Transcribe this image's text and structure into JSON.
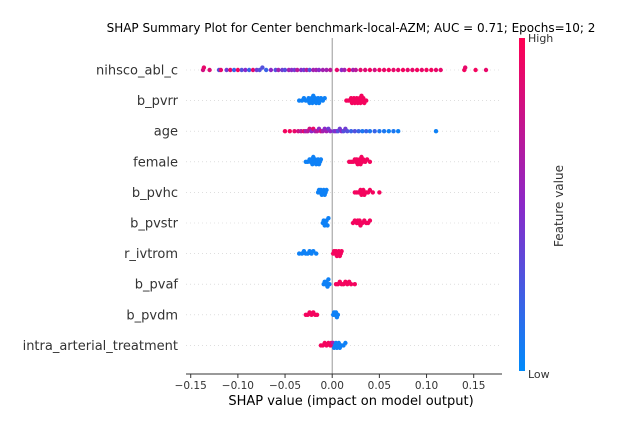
{
  "chart_data": {
    "type": "scatter",
    "subtype": "shap-beeswarm",
    "title": "SHAP Summary Plot for Center benchmark-local-AZM; AUC = 0.71; Epochs=10; 2",
    "xlabel": "SHAP value (impact on model output)",
    "xlim": [
      -0.155,
      0.18
    ],
    "xticks": [
      -0.15,
      -0.1,
      -0.05,
      0.0,
      0.05,
      0.1,
      0.15
    ],
    "xtick_labels": [
      "−0.15",
      "−0.10",
      "−0.05",
      "0.00",
      "0.05",
      "0.10",
      "0.15"
    ],
    "colorbar": {
      "title": "Feature value",
      "high_label": "High",
      "low_label": "Low",
      "high_color": "#ff0052",
      "mid_color": "#8c28c8",
      "low_color": "#008bfb"
    },
    "grid": "horizontal dotted",
    "features": [
      {
        "name": "nihsco_abl_c",
        "points": [
          [
            -0.137,
            0.8
          ],
          [
            -0.136,
            0.9
          ],
          [
            -0.13,
            0.85
          ],
          [
            -0.12,
            0.3
          ],
          [
            -0.118,
            0.9
          ],
          [
            -0.112,
            0.4
          ],
          [
            -0.108,
            0.9
          ],
          [
            -0.104,
            0.2
          ],
          [
            -0.1,
            0.95
          ],
          [
            -0.096,
            0.3
          ],
          [
            -0.092,
            0.5
          ],
          [
            -0.088,
            0.2
          ],
          [
            -0.084,
            0.9
          ],
          [
            -0.08,
            0.4
          ],
          [
            -0.077,
            0.3
          ],
          [
            -0.074,
            0.3
          ],
          [
            -0.07,
            0.2
          ],
          [
            -0.065,
            0.5
          ],
          [
            -0.06,
            0.3
          ],
          [
            -0.057,
            0.6
          ],
          [
            -0.053,
            0.4
          ],
          [
            -0.05,
            0.3
          ],
          [
            -0.046,
            0.6
          ],
          [
            -0.043,
            0.5
          ],
          [
            -0.04,
            0.4
          ],
          [
            -0.037,
            0.7
          ],
          [
            -0.033,
            0.5
          ],
          [
            -0.03,
            0.4
          ],
          [
            -0.027,
            0.7
          ],
          [
            -0.024,
            0.3
          ],
          [
            -0.02,
            0.6
          ],
          [
            -0.017,
            0.6
          ],
          [
            -0.014,
            0.5
          ],
          [
            -0.01,
            0.6
          ],
          [
            -0.006,
            0.6
          ],
          [
            -0.002,
            0.7
          ],
          [
            0.005,
            0.9
          ],
          [
            0.01,
            0.5
          ],
          [
            0.013,
            0.6
          ],
          [
            0.018,
            0.95
          ],
          [
            0.022,
            0.6
          ],
          [
            0.025,
            0.7
          ],
          [
            0.03,
            0.9
          ],
          [
            0.035,
            0.85
          ],
          [
            0.04,
            0.95
          ],
          [
            0.045,
            0.8
          ],
          [
            0.05,
            0.95
          ],
          [
            0.055,
            0.9
          ],
          [
            0.06,
            0.95
          ],
          [
            0.065,
            0.9
          ],
          [
            0.07,
            0.9
          ],
          [
            0.075,
            0.95
          ],
          [
            0.08,
            0.9
          ],
          [
            0.085,
            0.9
          ],
          [
            0.09,
            0.95
          ],
          [
            0.095,
            0.9
          ],
          [
            0.1,
            0.95
          ],
          [
            0.105,
            0.95
          ],
          [
            0.11,
            0.9
          ],
          [
            0.115,
            0.9
          ],
          [
            0.14,
            0.95
          ],
          [
            0.141,
            0.9
          ],
          [
            0.152,
            0.95
          ],
          [
            0.163,
            0.9
          ]
        ]
      },
      {
        "name": "b_pvrr",
        "points": [
          [
            -0.035,
            0.05
          ],
          [
            -0.032,
            0.05
          ],
          [
            -0.03,
            0.05
          ],
          [
            -0.028,
            0.05
          ],
          [
            -0.026,
            0.05
          ],
          [
            -0.025,
            0.05
          ],
          [
            -0.024,
            0.05
          ],
          [
            -0.023,
            0.05
          ],
          [
            -0.022,
            0.05
          ],
          [
            -0.021,
            0.05
          ],
          [
            -0.02,
            0.05
          ],
          [
            -0.019,
            0.05
          ],
          [
            -0.018,
            0.05
          ],
          [
            -0.017,
            0.05
          ],
          [
            -0.016,
            0.05
          ],
          [
            -0.015,
            0.05
          ],
          [
            -0.014,
            0.05
          ],
          [
            -0.013,
            0.05
          ],
          [
            -0.012,
            0.05
          ],
          [
            -0.01,
            0.05
          ],
          [
            -0.008,
            0.05
          ],
          [
            0.015,
            0.95
          ],
          [
            0.017,
            0.95
          ],
          [
            0.019,
            0.95
          ],
          [
            0.02,
            0.95
          ],
          [
            0.021,
            0.95
          ],
          [
            0.022,
            0.95
          ],
          [
            0.023,
            0.95
          ],
          [
            0.024,
            0.95
          ],
          [
            0.025,
            0.95
          ],
          [
            0.026,
            0.95
          ],
          [
            0.027,
            0.95
          ],
          [
            0.028,
            0.95
          ],
          [
            0.029,
            0.95
          ],
          [
            0.03,
            0.95
          ],
          [
            0.031,
            0.95
          ],
          [
            0.032,
            0.95
          ],
          [
            0.033,
            0.95
          ],
          [
            0.034,
            0.95
          ],
          [
            0.036,
            0.95
          ]
        ]
      },
      {
        "name": "age",
        "points": [
          [
            -0.05,
            0.95
          ],
          [
            -0.045,
            0.95
          ],
          [
            -0.04,
            0.9
          ],
          [
            -0.036,
            0.8
          ],
          [
            -0.033,
            0.7
          ],
          [
            -0.03,
            0.9
          ],
          [
            -0.028,
            0.6
          ],
          [
            -0.026,
            0.7
          ],
          [
            -0.024,
            0.8
          ],
          [
            -0.022,
            0.5
          ],
          [
            -0.02,
            0.9
          ],
          [
            -0.018,
            0.6
          ],
          [
            -0.016,
            0.7
          ],
          [
            -0.014,
            0.5
          ],
          [
            -0.012,
            0.8
          ],
          [
            -0.01,
            0.6
          ],
          [
            -0.008,
            0.5
          ],
          [
            -0.006,
            0.6
          ],
          [
            -0.004,
            0.4
          ],
          [
            -0.002,
            0.5
          ],
          [
            0.002,
            0.4
          ],
          [
            0.004,
            0.5
          ],
          [
            0.006,
            0.3
          ],
          [
            0.008,
            0.4
          ],
          [
            0.01,
            0.5
          ],
          [
            0.012,
            0.3
          ],
          [
            0.014,
            0.4
          ],
          [
            0.016,
            0.3
          ],
          [
            0.02,
            0.2
          ],
          [
            0.024,
            0.3
          ],
          [
            0.028,
            0.2
          ],
          [
            0.032,
            0.1
          ],
          [
            0.036,
            0.2
          ],
          [
            0.04,
            0.1
          ],
          [
            0.045,
            0.2
          ],
          [
            0.05,
            0.1
          ],
          [
            0.055,
            0.1
          ],
          [
            0.06,
            0.05
          ],
          [
            0.065,
            0.1
          ],
          [
            0.07,
            0.05
          ],
          [
            0.11,
            0.05
          ]
        ]
      },
      {
        "name": "female",
        "points": [
          [
            -0.028,
            0.05
          ],
          [
            -0.026,
            0.05
          ],
          [
            -0.024,
            0.05
          ],
          [
            -0.023,
            0.05
          ],
          [
            -0.022,
            0.05
          ],
          [
            -0.021,
            0.05
          ],
          [
            -0.02,
            0.05
          ],
          [
            -0.019,
            0.05
          ],
          [
            -0.018,
            0.05
          ],
          [
            -0.017,
            0.05
          ],
          [
            -0.016,
            0.05
          ],
          [
            -0.015,
            0.05
          ],
          [
            -0.014,
            0.05
          ],
          [
            -0.013,
            0.05
          ],
          [
            -0.012,
            0.05
          ],
          [
            0.018,
            0.95
          ],
          [
            0.02,
            0.95
          ],
          [
            0.022,
            0.95
          ],
          [
            0.024,
            0.95
          ],
          [
            0.025,
            0.95
          ],
          [
            0.026,
            0.95
          ],
          [
            0.027,
            0.95
          ],
          [
            0.028,
            0.95
          ],
          [
            0.029,
            0.95
          ],
          [
            0.03,
            0.95
          ],
          [
            0.031,
            0.95
          ],
          [
            0.032,
            0.95
          ],
          [
            0.033,
            0.95
          ],
          [
            0.035,
            0.95
          ],
          [
            0.037,
            0.95
          ],
          [
            0.04,
            0.95
          ]
        ]
      },
      {
        "name": "b_pvhc",
        "points": [
          [
            -0.015,
            0.05
          ],
          [
            -0.014,
            0.05
          ],
          [
            -0.013,
            0.05
          ],
          [
            -0.012,
            0.05
          ],
          [
            -0.011,
            0.05
          ],
          [
            -0.01,
            0.05
          ],
          [
            -0.009,
            0.05
          ],
          [
            -0.008,
            0.05
          ],
          [
            -0.007,
            0.05
          ],
          [
            -0.006,
            0.05
          ],
          [
            0.024,
            0.95
          ],
          [
            0.026,
            0.95
          ],
          [
            0.028,
            0.95
          ],
          [
            0.03,
            0.95
          ],
          [
            0.031,
            0.95
          ],
          [
            0.032,
            0.95
          ],
          [
            0.033,
            0.95
          ],
          [
            0.034,
            0.95
          ],
          [
            0.036,
            0.95
          ],
          [
            0.038,
            0.95
          ],
          [
            0.04,
            0.95
          ],
          [
            0.043,
            0.95
          ],
          [
            0.05,
            0.95
          ]
        ]
      },
      {
        "name": "b_pvstr",
        "points": [
          [
            -0.01,
            0.05
          ],
          [
            -0.009,
            0.05
          ],
          [
            -0.008,
            0.05
          ],
          [
            -0.007,
            0.05
          ],
          [
            -0.006,
            0.05
          ],
          [
            -0.005,
            0.05
          ],
          [
            -0.004,
            0.05
          ],
          [
            0.022,
            0.95
          ],
          [
            0.024,
            0.95
          ],
          [
            0.026,
            0.95
          ],
          [
            0.027,
            0.95
          ],
          [
            0.028,
            0.95
          ],
          [
            0.029,
            0.95
          ],
          [
            0.03,
            0.95
          ],
          [
            0.032,
            0.95
          ],
          [
            0.034,
            0.95
          ],
          [
            0.036,
            0.95
          ],
          [
            0.038,
            0.95
          ],
          [
            0.04,
            0.95
          ]
        ]
      },
      {
        "name": "r_ivtrom",
        "points": [
          [
            -0.035,
            0.05
          ],
          [
            -0.032,
            0.05
          ],
          [
            -0.03,
            0.05
          ],
          [
            -0.028,
            0.05
          ],
          [
            -0.026,
            0.05
          ],
          [
            -0.024,
            0.05
          ],
          [
            -0.022,
            0.05
          ],
          [
            -0.02,
            0.05
          ],
          [
            -0.017,
            0.05
          ],
          [
            0.001,
            0.95
          ],
          [
            0.002,
            0.95
          ],
          [
            0.003,
            0.95
          ],
          [
            0.004,
            0.95
          ],
          [
            0.005,
            0.95
          ],
          [
            0.006,
            0.95
          ],
          [
            0.007,
            0.95
          ],
          [
            0.008,
            0.95
          ],
          [
            0.009,
            0.95
          ],
          [
            0.01,
            0.95
          ]
        ]
      },
      {
        "name": "b_pvaf",
        "points": [
          [
            -0.009,
            0.05
          ],
          [
            -0.008,
            0.05
          ],
          [
            -0.007,
            0.05
          ],
          [
            -0.006,
            0.05
          ],
          [
            -0.005,
            0.05
          ],
          [
            -0.004,
            0.05
          ],
          [
            -0.003,
            0.05
          ],
          [
            0.004,
            0.95
          ],
          [
            0.006,
            0.95
          ],
          [
            0.008,
            0.95
          ],
          [
            0.01,
            0.95
          ],
          [
            0.012,
            0.95
          ],
          [
            0.014,
            0.95
          ],
          [
            0.016,
            0.95
          ],
          [
            0.018,
            0.95
          ],
          [
            0.02,
            0.95
          ],
          [
            0.024,
            0.95
          ]
        ]
      },
      {
        "name": "b_pvdm",
        "points": [
          [
            -0.028,
            0.95
          ],
          [
            -0.026,
            0.95
          ],
          [
            -0.024,
            0.95
          ],
          [
            -0.022,
            0.95
          ],
          [
            -0.02,
            0.95
          ],
          [
            -0.018,
            0.95
          ],
          [
            -0.016,
            0.95
          ],
          [
            0.001,
            0.05
          ],
          [
            0.002,
            0.05
          ],
          [
            0.003,
            0.05
          ],
          [
            0.004,
            0.05
          ],
          [
            0.005,
            0.05
          ],
          [
            0.006,
            0.05
          ]
        ]
      },
      {
        "name": "intra_arterial_treatment",
        "points": [
          [
            -0.012,
            0.95
          ],
          [
            -0.01,
            0.95
          ],
          [
            -0.008,
            0.95
          ],
          [
            -0.006,
            0.95
          ],
          [
            -0.004,
            0.95
          ],
          [
            -0.002,
            0.95
          ],
          [
            -0.001,
            0.9
          ],
          [
            0.0,
            0.9
          ],
          [
            0.001,
            0.6
          ],
          [
            0.002,
            0.05
          ],
          [
            0.003,
            0.05
          ],
          [
            0.004,
            0.05
          ],
          [
            0.005,
            0.05
          ],
          [
            0.006,
            0.05
          ],
          [
            0.007,
            0.05
          ],
          [
            0.008,
            0.05
          ],
          [
            0.01,
            0.05
          ],
          [
            0.012,
            0.05
          ],
          [
            0.014,
            0.05
          ]
        ]
      }
    ]
  }
}
